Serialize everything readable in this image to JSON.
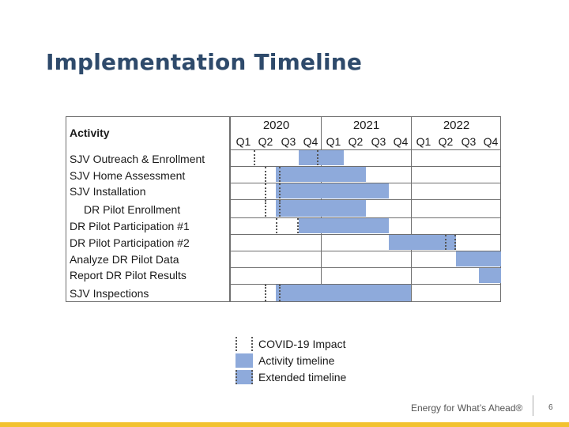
{
  "title": "Implementation Timeline",
  "table": {
    "activity_header": "Activity",
    "years": [
      "2020",
      "2021",
      "2022"
    ],
    "quarters": [
      "Q1",
      "Q2",
      "Q3",
      "Q4",
      "Q1",
      "Q2",
      "Q3",
      "Q4",
      "Q1",
      "Q2",
      "Q3",
      "Q4"
    ],
    "rows": [
      {
        "label": "SJV Outreach & Enrollment",
        "activity": [
          3,
          4
        ],
        "covid": [
          1,
          3.9
        ],
        "extended": [
          4,
          5
        ]
      },
      {
        "label": "SJV Home Assessment",
        "activity": [
          2,
          4
        ],
        "covid": [
          1.5,
          2.2
        ],
        "extended": [
          4,
          6
        ]
      },
      {
        "label": "SJV Installation",
        "activity": [
          2,
          4
        ],
        "covid": [
          1.5,
          2.2
        ],
        "extended": [
          4,
          7
        ]
      },
      {
        "label": "DR Pilot Enrollment",
        "activity": [
          2,
          4
        ],
        "covid": [
          1.5,
          2.2
        ],
        "extended": [
          4,
          6
        ]
      },
      {
        "label": "DR Pilot Participation #1",
        "activity": [
          3,
          7
        ],
        "covid": [
          2,
          3
        ]
      },
      {
        "label": "DR Pilot Participation #2",
        "activity": [
          7,
          10
        ],
        "covid": [
          9.5,
          10
        ]
      },
      {
        "label": "Analyze DR Pilot Data",
        "activity": [
          10,
          12
        ]
      },
      {
        "label": "Report DR Pilot Results",
        "activity": [
          11,
          12
        ]
      },
      {
        "label": "SJV Inspections",
        "activity": [
          2,
          4
        ],
        "covid": [
          1.5,
          2.2
        ],
        "extended": [
          4,
          8
        ]
      }
    ]
  },
  "legend": {
    "covid": "COVID-19 Impact",
    "activity": "Activity timeline",
    "extended": "Extended timeline"
  },
  "colors": {
    "bar": "#8eaadb",
    "title": "#2e4a6b",
    "stripe": "#f2c230"
  },
  "footer": {
    "brand": "Energy for What’s Ahead®",
    "page": "6"
  }
}
